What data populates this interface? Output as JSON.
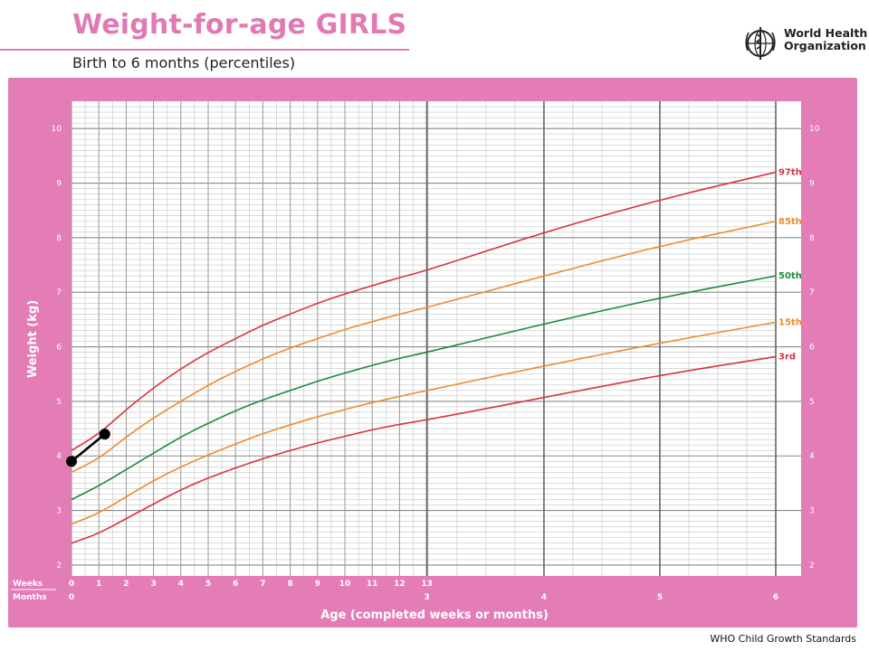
{
  "header": {
    "title": "Weight-for-age GIRLS",
    "subtitle": "Birth to 6 months (percentiles)",
    "org_line1": "World Health",
    "org_line2": "Organization",
    "logo_icon": "who-emblem-icon"
  },
  "footer": {
    "text": "WHO Child Growth Standards"
  },
  "colors": {
    "frame": "#e47cb6",
    "grid": "#9a9a9a",
    "p97": "#d8343e",
    "p85": "#f08a2c",
    "p50": "#1f8a3c",
    "p15": "#f08a2c",
    "p3": "#d8343e",
    "measurement": "#000000"
  },
  "chart_data": {
    "type": "line",
    "title": "Weight-for-age GIRLS",
    "subtitle": "Birth to 6 months (percentiles)",
    "xlabel": "Age (completed weeks or months)",
    "ylabel": "Weight (kg)",
    "xunit": "months",
    "xlim": [
      0,
      6
    ],
    "ylim": [
      1.8,
      10.5
    ],
    "y_ticks": [
      2,
      3,
      4,
      5,
      6,
      7,
      8,
      9,
      10
    ],
    "week_ticks": [
      0,
      1,
      2,
      3,
      4,
      5,
      6,
      7,
      8,
      9,
      10,
      11,
      12,
      13
    ],
    "month_ticks": [
      0,
      3,
      4,
      5,
      6
    ],
    "row_labels": {
      "weeks": "Weeks",
      "months": "Months"
    },
    "grid": true,
    "series": [
      {
        "name": "97th",
        "color": "#d8343e",
        "x": [
          0,
          0.23,
          0.46,
          0.69,
          0.92,
          1.15,
          1.38,
          1.61,
          1.84,
          2.07,
          2.3,
          2.53,
          2.76,
          2.99,
          4,
          5,
          6
        ],
        "values": [
          4.1,
          4.4,
          4.85,
          5.25,
          5.6,
          5.9,
          6.15,
          6.4,
          6.6,
          6.8,
          6.97,
          7.12,
          7.27,
          7.4,
          8.1,
          8.7,
          9.2
        ]
      },
      {
        "name": "85th",
        "color": "#f08a2c",
        "x": [
          0,
          0.23,
          0.46,
          0.69,
          0.92,
          1.15,
          1.38,
          1.61,
          1.84,
          2.07,
          2.3,
          2.53,
          2.76,
          2.99,
          4,
          5,
          6
        ],
        "values": [
          3.7,
          3.95,
          4.35,
          4.7,
          5.0,
          5.3,
          5.55,
          5.78,
          5.98,
          6.15,
          6.32,
          6.46,
          6.6,
          6.72,
          7.3,
          7.85,
          8.3
        ]
      },
      {
        "name": "50th",
        "color": "#1f8a3c",
        "x": [
          0,
          0.23,
          0.46,
          0.69,
          0.92,
          1.15,
          1.38,
          1.61,
          1.84,
          2.07,
          2.3,
          2.53,
          2.76,
          2.99,
          4,
          5,
          6
        ],
        "values": [
          3.2,
          3.45,
          3.75,
          4.05,
          4.35,
          4.6,
          4.83,
          5.03,
          5.2,
          5.37,
          5.52,
          5.66,
          5.79,
          5.9,
          6.42,
          6.9,
          7.3
        ]
      },
      {
        "name": "15th",
        "color": "#f08a2c",
        "x": [
          0,
          0.23,
          0.46,
          0.69,
          0.92,
          1.15,
          1.38,
          1.61,
          1.84,
          2.07,
          2.3,
          2.53,
          2.76,
          2.99,
          4,
          5,
          6
        ],
        "values": [
          2.75,
          2.95,
          3.25,
          3.55,
          3.8,
          4.02,
          4.22,
          4.41,
          4.57,
          4.72,
          4.85,
          4.98,
          5.09,
          5.2,
          5.65,
          6.07,
          6.45
        ]
      },
      {
        "name": "3rd",
        "color": "#d8343e",
        "x": [
          0,
          0.23,
          0.46,
          0.69,
          0.92,
          1.15,
          1.38,
          1.61,
          1.84,
          2.07,
          2.3,
          2.53,
          2.76,
          2.99,
          4,
          5,
          6
        ],
        "values": [
          2.4,
          2.58,
          2.85,
          3.12,
          3.38,
          3.6,
          3.78,
          3.95,
          4.1,
          4.24,
          4.36,
          4.48,
          4.58,
          4.66,
          5.07,
          5.48,
          5.82
        ]
      }
    ],
    "measurements": {
      "x": [
        0,
        0.28
      ],
      "values": [
        3.9,
        4.4
      ]
    }
  }
}
